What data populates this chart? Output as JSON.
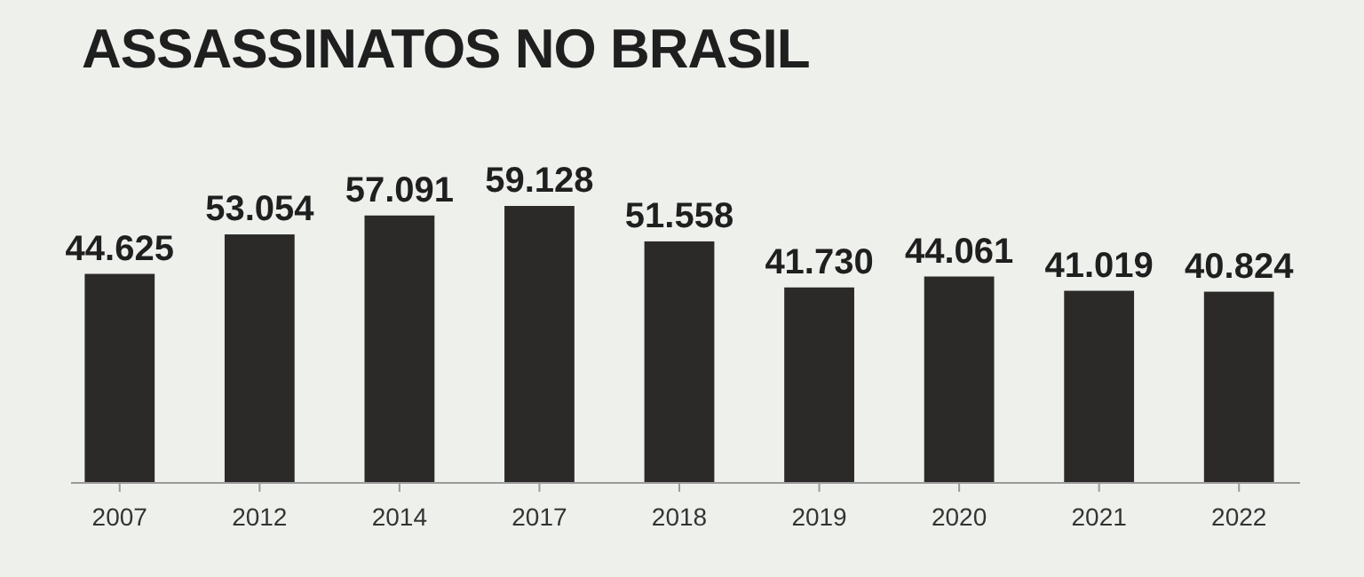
{
  "chart_data": {
    "type": "bar",
    "title": "ASSASSINATOS NO BRASIL",
    "categories": [
      "2007",
      "2012",
      "2014",
      "2017",
      "2018",
      "2019",
      "2020",
      "2021",
      "2022"
    ],
    "values": [
      44625,
      53054,
      57091,
      59128,
      51558,
      41730,
      44061,
      41019,
      40824
    ],
    "value_labels": [
      "44.625",
      "53.054",
      "57.091",
      "59.128",
      "51.558",
      "41.730",
      "44.061",
      "41.019",
      "40.824"
    ],
    "color": "#2b2a28",
    "grid": false
  }
}
